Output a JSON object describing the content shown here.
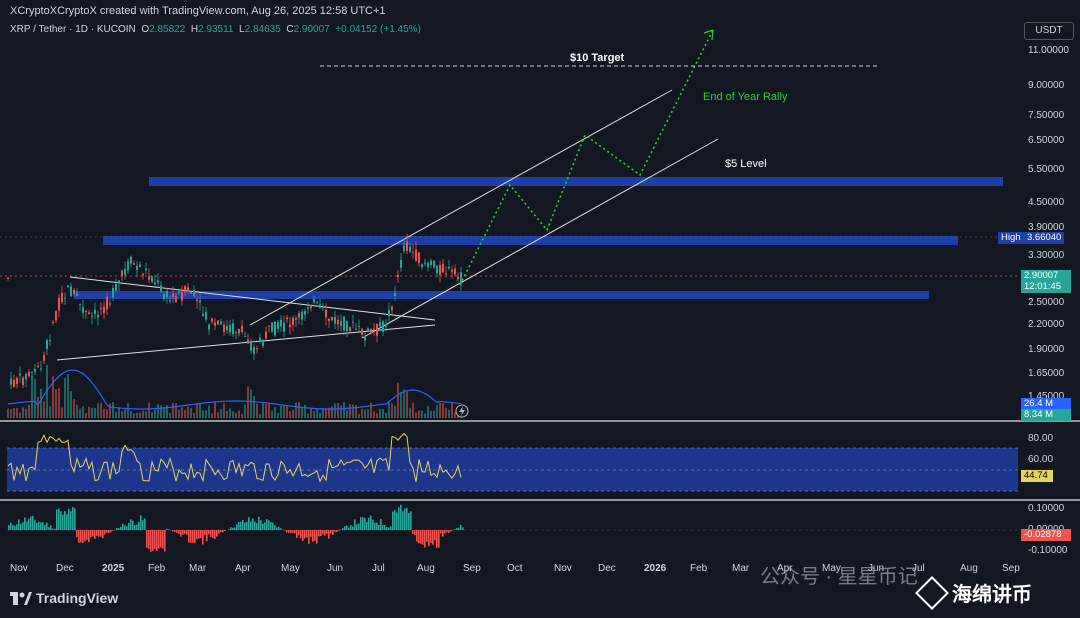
{
  "header": {
    "credit": "XCryptoXCryptoX created with TradingView.com, Aug 26, 2025 12:58 UTC+1",
    "symbol": "XRP / Tether · 1D · KUCOIN",
    "o_label": "O",
    "o_value": "2.85822",
    "h_label": "H",
    "h_value": "2.93511",
    "l_label": "L",
    "l_value": "2.84635",
    "c_label": "C",
    "c_value": "2.90007",
    "change": "+0.04152 (+1.45%)"
  },
  "price_axis": {
    "currency": "USDT",
    "ticks": [
      "11.00000",
      "9.00000",
      "7.50000",
      "6.50000",
      "5.50000",
      "4.50000",
      "3.90000",
      "3.30000",
      "2.50000",
      "2.20000",
      "1.90000",
      "1.65000",
      "1.45000"
    ],
    "high_label": "High",
    "high_value": "3.66040",
    "last_price": "2.90007",
    "countdown": "12:01:45",
    "vol1": "26.4 M",
    "vol2": "8.34 M"
  },
  "rsi_axis": {
    "ticks": [
      "80.00",
      "60.00"
    ],
    "value": "44.74"
  },
  "macd_axis": {
    "ticks": [
      "0.10000",
      "0.00000",
      "-0.10000"
    ],
    "value": "-0.02878"
  },
  "time_axis": [
    "Nov",
    "Dec",
    "2025",
    "Feb",
    "Mar",
    "Apr",
    "May",
    "Jun",
    "Jul",
    "Aug",
    "Sep",
    "Oct",
    "Nov",
    "Dec",
    "2026",
    "Feb",
    "Mar",
    "Apr",
    "May",
    "Jun",
    "Jul",
    "Aug",
    "Sep"
  ],
  "annotations": {
    "target10": "$10 Target",
    "level5": "$5 Level",
    "rally": "End of Year Rally"
  },
  "colors": {
    "up": "#26a69a",
    "down": "#ef5350",
    "zone": "#1e3fa6",
    "rally": "#2ecc40",
    "rsi": "#e6d45c"
  },
  "footer": {
    "brand": "TradingView"
  },
  "watermark": {
    "line1": "公众号 · 星星币记",
    "line2": "海绵讲币"
  }
}
